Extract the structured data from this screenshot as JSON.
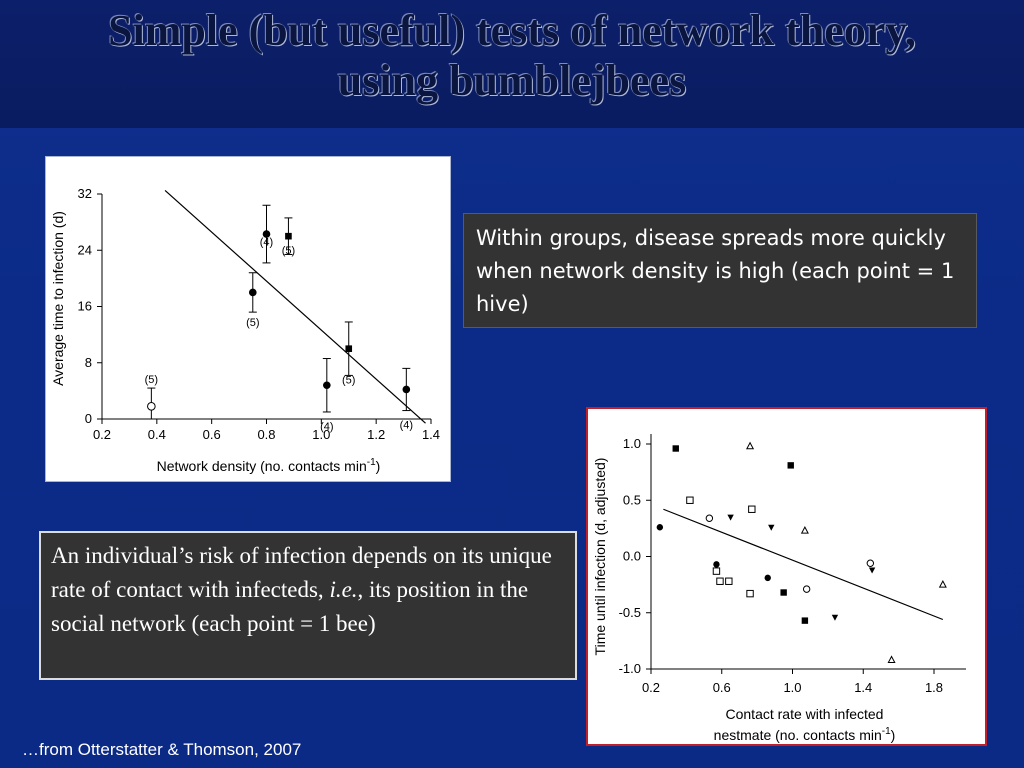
{
  "slide": {
    "title_line1": "Simple (but useful) tests of network theory,",
    "title_line2": "using bumblejbees",
    "note1": "Within groups, disease spreads more quickly when network density is high (each point = 1 hive)",
    "note2_part1": "An individual’s risk of infection depends on its unique rate of contact with infecteds, ",
    "note2_italic": "i.e.",
    "note2_part2": ", its position in the social network (each point = 1 bee)",
    "citation": "…from Otterstatter & Thomson, 2007",
    "colors": {
      "background": "#0d2d8a",
      "title_band": "#0b1d64",
      "note_bg": "#333333",
      "chart2_border": "#c0202a"
    }
  },
  "chart_data": [
    {
      "type": "scatter",
      "xlabel": "Network density (no. contacts min",
      "xlabel_sup": "-1",
      "xlabel_end": ")",
      "ylabel": "Average time to infection (d)",
      "xlim": [
        0.2,
        1.4
      ],
      "ylim": [
        0,
        32
      ],
      "xticks": [
        "0.2",
        "0.4",
        "0.6",
        "0.8",
        "1.0",
        "1.2",
        "1.4"
      ],
      "yticks": [
        "0",
        "8",
        "16",
        "24",
        "32"
      ],
      "points": [
        {
          "x": 0.38,
          "y": 1.8,
          "err": 2.6,
          "marker": "circle-open",
          "n": "(5)"
        },
        {
          "x": 0.75,
          "y": 18.0,
          "err": 2.8,
          "marker": "circle",
          "n": "(5)"
        },
        {
          "x": 0.8,
          "y": 26.3,
          "err": 4.1,
          "marker": "circle",
          "n": "(4)"
        },
        {
          "x": 0.88,
          "y": 26.0,
          "err": 2.6,
          "marker": "square",
          "n": "(5)"
        },
        {
          "x": 1.02,
          "y": 4.8,
          "err": 3.8,
          "marker": "circle",
          "n": "(4)"
        },
        {
          "x": 1.1,
          "y": 10.0,
          "err": 3.8,
          "marker": "square",
          "n": "(5)"
        },
        {
          "x": 1.31,
          "y": 4.2,
          "err": 3.0,
          "marker": "circle",
          "n": "(4)"
        }
      ],
      "fit_line": {
        "x": [
          0.43,
          1.38
        ],
        "y": [
          32.5,
          -0.6
        ]
      },
      "grid": false
    },
    {
      "type": "scatter",
      "xlabel_line1": "Contact rate with infected",
      "xlabel_line2": "nestmate (no. contacts min",
      "xlabel_sup": "-1",
      "xlabel_end": ")",
      "ylabel": "Time until infection (d, adjusted)",
      "xlim": [
        0.2,
        1.8
      ],
      "ylim": [
        -1.0,
        1.0
      ],
      "xticks": [
        "0.2",
        "0.6",
        "1.0",
        "1.4",
        "1.8"
      ],
      "yticks": [
        "-1.0",
        "-0.5",
        "0.0",
        "0.5",
        "1.0"
      ],
      "points": [
        {
          "x": 0.34,
          "y": 0.96,
          "marker": "square"
        },
        {
          "x": 0.25,
          "y": 0.26,
          "marker": "circle"
        },
        {
          "x": 0.42,
          "y": 0.5,
          "marker": "square-open"
        },
        {
          "x": 0.53,
          "y": 0.34,
          "marker": "circle-open"
        },
        {
          "x": 0.57,
          "y": -0.07,
          "marker": "circle"
        },
        {
          "x": 0.57,
          "y": -0.13,
          "marker": "square-open"
        },
        {
          "x": 0.59,
          "y": -0.22,
          "marker": "square-open"
        },
        {
          "x": 0.64,
          "y": -0.22,
          "marker": "square-open"
        },
        {
          "x": 0.65,
          "y": 0.35,
          "marker": "triangle-down"
        },
        {
          "x": 0.76,
          "y": 0.98,
          "marker": "triangle-open"
        },
        {
          "x": 0.77,
          "y": 0.42,
          "marker": "square-open"
        },
        {
          "x": 0.76,
          "y": -0.33,
          "marker": "square-open"
        },
        {
          "x": 0.86,
          "y": -0.19,
          "marker": "circle"
        },
        {
          "x": 0.88,
          "y": 0.26,
          "marker": "triangle-down"
        },
        {
          "x": 0.95,
          "y": -0.32,
          "marker": "square"
        },
        {
          "x": 0.99,
          "y": 0.81,
          "marker": "square"
        },
        {
          "x": 1.07,
          "y": 0.23,
          "marker": "triangle-open"
        },
        {
          "x": 1.07,
          "y": -0.57,
          "marker": "square"
        },
        {
          "x": 1.08,
          "y": -0.29,
          "marker": "circle-open"
        },
        {
          "x": 1.24,
          "y": -0.54,
          "marker": "triangle-down"
        },
        {
          "x": 1.44,
          "y": -0.06,
          "marker": "circle-open"
        },
        {
          "x": 1.45,
          "y": -0.12,
          "marker": "triangle-down"
        },
        {
          "x": 1.56,
          "y": -0.92,
          "marker": "triangle-open"
        },
        {
          "x": 1.85,
          "y": -0.25,
          "marker": "triangle-open"
        }
      ],
      "fit_line": {
        "x": [
          0.27,
          1.85
        ],
        "y": [
          0.42,
          -0.56
        ]
      },
      "grid": false
    }
  ]
}
